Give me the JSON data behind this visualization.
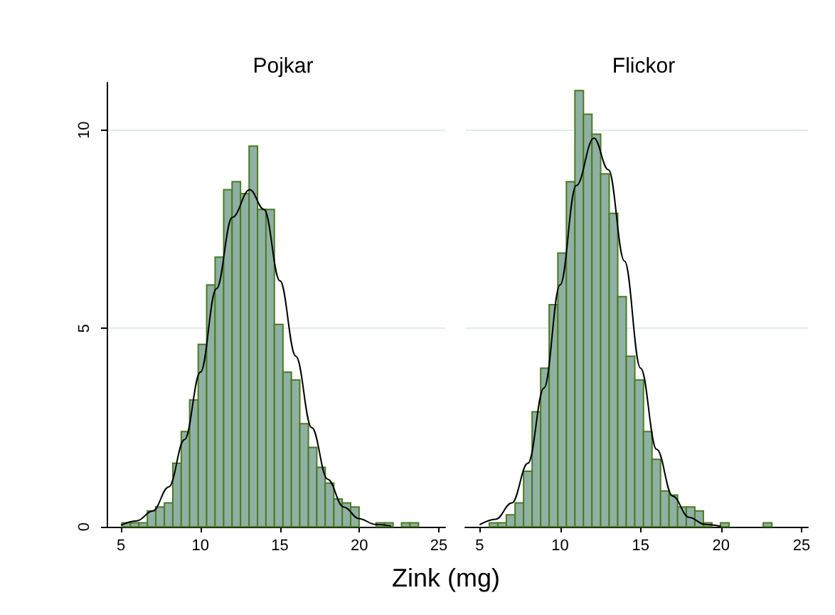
{
  "chart_data": [
    {
      "type": "histogram",
      "title": "Pojkar",
      "xlabel": "Zink (mg)",
      "xlim": [
        4.1,
        25.4
      ],
      "xticks": [
        5,
        10,
        15,
        20,
        25
      ],
      "ylim": [
        0,
        11.2
      ],
      "yticks": [
        0,
        5,
        10
      ],
      "grid": "y",
      "series": [
        {
          "type": "histogram",
          "color": "#8fb1a3",
          "bins": [
            5.06,
            5.59,
            6.13,
            6.66,
            7.19,
            7.73,
            8.26,
            8.79,
            9.32,
            9.86,
            10.39,
            10.92,
            11.46,
            11.99,
            12.52,
            13.06,
            13.59,
            14.12,
            14.65,
            15.19,
            15.72,
            16.25,
            16.79,
            17.32,
            17.85,
            18.39,
            18.92,
            19.45,
            19.98,
            20.52,
            21.05,
            21.58,
            22.12,
            22.65,
            23.18,
            23.72
          ],
          "values": [
            0.1,
            0.1,
            0.1,
            0.4,
            0.5,
            0.6,
            1.6,
            2.4,
            3.2,
            4.6,
            6.1,
            6.8,
            8.5,
            8.7,
            8.4,
            9.6,
            8.0,
            8.0,
            5.1,
            3.9,
            3.7,
            2.6,
            2.0,
            1.5,
            1.1,
            0.7,
            0.6,
            0.5,
            0,
            0,
            0.1,
            0.1,
            0,
            0.1,
            0.1
          ]
        },
        {
          "type": "line",
          "color": "#000000",
          "x": [
            5,
            6,
            7,
            8,
            9,
            10,
            11,
            12,
            13.1,
            14,
            15,
            16,
            17,
            18,
            19,
            20,
            21,
            22
          ],
          "values": [
            0.04,
            0.15,
            0.4,
            1.0,
            2.2,
            3.9,
            6.0,
            7.8,
            8.5,
            8.0,
            6.2,
            4.3,
            2.5,
            1.2,
            0.5,
            0.2,
            0.06,
            0.02
          ]
        }
      ]
    },
    {
      "type": "histogram",
      "title": "Flickor",
      "xlim": [
        4.1,
        25.4
      ],
      "xticks": [
        5,
        10,
        15,
        20,
        25
      ],
      "yticks": [
        0,
        5,
        10
      ],
      "grid": "y",
      "tick_labels": "x",
      "series": [
        {
          "type": "histogram",
          "color": "#8fb1a3",
          "bins": [
            5.6,
            6.13,
            6.66,
            7.2,
            7.73,
            8.26,
            8.79,
            9.32,
            9.86,
            10.39,
            10.92,
            11.45,
            11.98,
            12.52,
            13.05,
            13.58,
            14.11,
            14.64,
            15.18,
            15.71,
            16.24,
            16.77,
            17.3,
            17.84,
            18.37,
            18.9,
            19.43,
            19.96,
            20.5,
            21.03,
            21.56,
            22.09,
            22.62,
            23.16
          ],
          "values": [
            0.1,
            0.1,
            0.3,
            0.6,
            1.4,
            2.9,
            4.0,
            5.6,
            6.9,
            8.7,
            11.0,
            10.4,
            9.9,
            8.9,
            7.9,
            5.8,
            4.3,
            3.7,
            2.4,
            1.7,
            0.9,
            0.8,
            0.5,
            0.5,
            0.4,
            0.1,
            0,
            0.1,
            0,
            0,
            0,
            0,
            0.1
          ]
        },
        {
          "type": "line",
          "color": "#000000",
          "x": [
            5,
            6,
            7,
            8,
            9,
            10,
            11,
            12.1,
            13,
            14,
            15,
            16,
            17,
            18,
            19,
            20
          ],
          "values": [
            0.05,
            0.19,
            0.6,
            1.6,
            3.5,
            6.1,
            8.6,
            9.8,
            9.0,
            6.7,
            4.0,
            1.95,
            0.77,
            0.24,
            0.06,
            0.01
          ]
        }
      ]
    }
  ]
}
